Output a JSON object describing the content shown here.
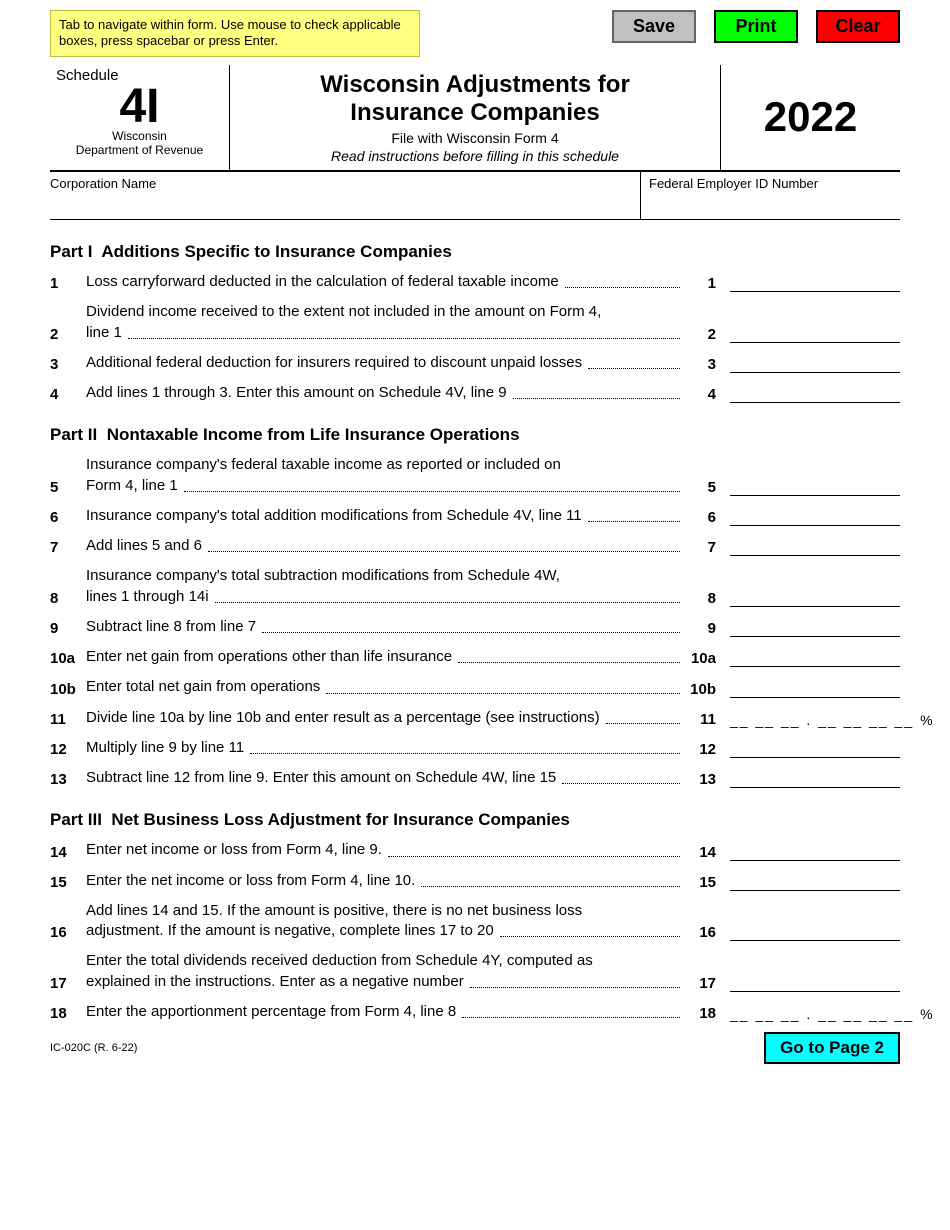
{
  "hint": "Tab to navigate within form. Use mouse to check applicable boxes, press spacebar or press Enter.",
  "buttons": {
    "save": "Save",
    "print": "Print",
    "clear": "Clear",
    "page2": "Go to Page 2"
  },
  "header": {
    "schedule_label": "Schedule",
    "schedule_code": "4I",
    "dept_line1": "Wisconsin",
    "dept_line2": "Department of Revenue",
    "title_l1": "Wisconsin Adjustments for",
    "title_l2": "Insurance Companies",
    "subtitle": "File with Wisconsin Form 4",
    "instructions": "Read instructions before filling in this schedule",
    "year": "2022"
  },
  "namefein": {
    "corp_label": "Corporation Name",
    "fein_label": "Federal Employer ID Number"
  },
  "parts": {
    "p1": {
      "label": "Part I",
      "title": "Additions Specific to Insurance Companies"
    },
    "p2": {
      "label": "Part II",
      "title": "Nontaxable Income from Life Insurance Operations"
    },
    "p3": {
      "label": "Part III",
      "title": "Net Business Loss Adjustment for Insurance Companies"
    }
  },
  "pct_mask": "__ __ __ . __ __ __ __",
  "pct_sign": "%",
  "lines": {
    "l1": {
      "n": "1",
      "t": "Loss carryforward deducted in the calculation of federal taxable income",
      "r": "1"
    },
    "l2": {
      "n": "2",
      "t1": "Dividend income received to the extent not included in the amount on Form 4,",
      "t2": "line 1",
      "r": "2"
    },
    "l3": {
      "n": "3",
      "t": "Additional federal deduction for insurers required to discount unpaid losses",
      "r": "3"
    },
    "l4": {
      "n": "4",
      "t": "Add lines 1 through 3. Enter this amount on Schedule 4V, line 9",
      "r": "4"
    },
    "l5": {
      "n": "5",
      "t1": "Insurance company's federal taxable income as reported or included on",
      "t2": "Form 4, line 1",
      "r": "5"
    },
    "l6": {
      "n": "6",
      "t": "Insurance company's total addition modifications from Schedule 4V, line 11",
      "r": "6"
    },
    "l7": {
      "n": "7",
      "t": "Add lines 5 and 6",
      "r": "7"
    },
    "l8": {
      "n": "8",
      "t1": "Insurance company's total subtraction modifications from Schedule 4W,",
      "t2": "lines 1 through 14i",
      "r": "8"
    },
    "l9": {
      "n": "9",
      "t": "Subtract line 8 from line 7",
      "r": "9"
    },
    "l10a": {
      "n": "10a",
      "t": "Enter net gain from operations other than life insurance",
      "r": "10a"
    },
    "l10b": {
      "n": "10b",
      "t": "Enter total net gain from operations",
      "r": "10b"
    },
    "l11": {
      "n": "11",
      "t": "Divide line 10a by line 10b and enter result as a percentage (see instructions)",
      "r": "11"
    },
    "l12": {
      "n": "12",
      "t": "Multiply line 9 by line 11",
      "r": "12"
    },
    "l13": {
      "n": "13",
      "t": "Subtract line 12 from line 9. Enter this amount on Schedule 4W, line 15",
      "r": "13"
    },
    "l14": {
      "n": "14",
      "t": "Enter net income or loss from Form 4, line 9.",
      "r": "14"
    },
    "l15": {
      "n": "15",
      "t": "Enter the net income or loss from Form 4, line 10.",
      "r": "15"
    },
    "l16": {
      "n": "16",
      "t1": "Add lines 14 and 15. If the amount is positive, there is no net business loss",
      "t2": "adjustment. If the amount is negative, complete lines 17 to 20",
      "r": "16"
    },
    "l17": {
      "n": "17",
      "t1": "Enter the total dividends received deduction from Schedule 4Y, computed as",
      "t2": "explained in the instructions. Enter as a negative number",
      "r": "17"
    },
    "l18": {
      "n": "18",
      "t": "Enter the apportionment percentage from Form 4, line 8",
      "r": "18"
    }
  },
  "footer_code": "IC-020C (R. 6-22)"
}
